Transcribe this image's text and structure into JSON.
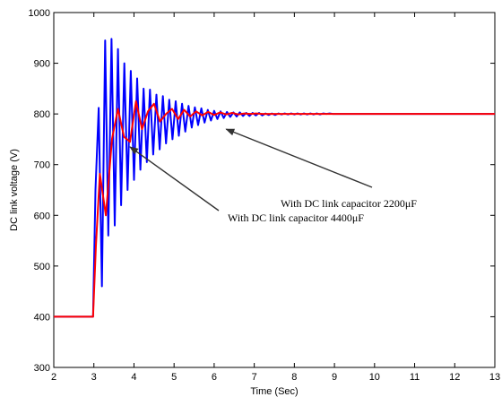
{
  "chart_data": {
    "type": "line",
    "title": "",
    "xlabel": "Time (Sec)",
    "ylabel": "DC link voltage (V)",
    "xlim": [
      2,
      13
    ],
    "ylim": [
      300,
      1000
    ],
    "xticks": [
      2,
      3,
      4,
      5,
      6,
      7,
      8,
      9,
      10,
      11,
      12,
      13
    ],
    "yticks": [
      300,
      400,
      500,
      600,
      700,
      800,
      900,
      1000
    ],
    "grid": false,
    "legend": "none",
    "series": [
      {
        "color": "#0000ff",
        "x": [
          2.0,
          2.98,
          3.04,
          3.12,
          3.2,
          3.28,
          3.36,
          3.44,
          3.52,
          3.6,
          3.68,
          3.76,
          3.84,
          3.92,
          4.0,
          4.08,
          4.16,
          4.24,
          4.32,
          4.4,
          4.48,
          4.56,
          4.64,
          4.72,
          4.8,
          4.88,
          4.96,
          5.04,
          5.12,
          5.2,
          5.28,
          5.36,
          5.44,
          5.52,
          5.6,
          5.68,
          5.76,
          5.84,
          5.92,
          6.0,
          6.08,
          6.16,
          6.24,
          6.32,
          6.4,
          6.48,
          6.56,
          6.64,
          6.72,
          6.8,
          6.88,
          6.96,
          7.04,
          7.12,
          7.2,
          7.28,
          7.36,
          7.44,
          7.52,
          7.6,
          7.68,
          7.76,
          7.84,
          7.92,
          8.0,
          8.08,
          8.16,
          8.24,
          8.32,
          8.4,
          8.48,
          8.56,
          8.64,
          8.72,
          8.8,
          8.88,
          8.96,
          9.04,
          9.12,
          9.2,
          9.28,
          9.36,
          9.44,
          9.52,
          9.6,
          9.68,
          9.76,
          9.84,
          9.92,
          10.0,
          10.08,
          10.16,
          10.24,
          10.32,
          10.4,
          10.5,
          10.6,
          10.7,
          10.8,
          11.0,
          11.5,
          12.0,
          12.5,
          13.0
        ],
        "y": [
          400,
          400,
          650,
          812,
          460,
          945,
          560,
          948,
          580,
          928,
          620,
          900,
          650,
          885,
          670,
          870,
          690,
          850,
          705,
          848,
          720,
          838,
          730,
          835,
          742,
          828,
          750,
          825,
          757,
          820,
          765,
          816,
          773,
          813,
          778,
          811,
          783,
          808,
          787,
          806,
          790,
          805,
          792,
          804,
          794,
          803,
          795,
          803,
          796,
          802,
          796,
          802,
          797,
          802,
          797,
          801,
          798,
          801,
          798,
          801,
          799,
          801,
          799,
          801,
          799,
          801,
          799,
          801,
          799,
          801,
          799,
          801,
          799,
          801,
          800,
          801,
          800,
          800,
          800,
          800,
          800,
          800,
          800,
          800,
          800,
          800,
          800,
          800,
          800,
          800,
          800,
          800,
          800,
          800,
          800,
          800,
          800,
          800,
          800,
          800,
          800,
          800,
          800,
          800
        ]
      },
      {
        "color": "#ff0000",
        "x": [
          2.0,
          2.98,
          3.05,
          3.15,
          3.3,
          3.45,
          3.6,
          3.75,
          3.9,
          4.05,
          4.2,
          4.35,
          4.5,
          4.65,
          4.8,
          4.95,
          5.1,
          5.25,
          5.4,
          5.55,
          5.7,
          5.85,
          6.0,
          6.15,
          6.3,
          6.45,
          6.6,
          6.75,
          6.9,
          7.05,
          7.2,
          7.35,
          7.5,
          7.65,
          7.8,
          8.0,
          8.5,
          9.0,
          9.5,
          10.0,
          11.0,
          12.0,
          13.0
        ],
        "y": [
          400,
          400,
          540,
          682,
          600,
          750,
          810,
          755,
          745,
          825,
          770,
          805,
          820,
          785,
          800,
          810,
          790,
          808,
          795,
          805,
          797,
          804,
          798,
          803,
          799,
          802,
          799,
          801,
          800,
          801,
          800,
          800,
          800,
          800,
          800,
          800,
          800,
          800,
          800,
          800,
          800,
          800,
          800
        ]
      }
    ],
    "annotations": [
      {
        "text": "With DC link capacitor 2200μF",
        "arrow_to": [
          6.3,
          770
        ]
      },
      {
        "text": "With DC link capacitor 4400μF",
        "arrow_to": [
          3.9,
          735
        ]
      }
    ]
  }
}
